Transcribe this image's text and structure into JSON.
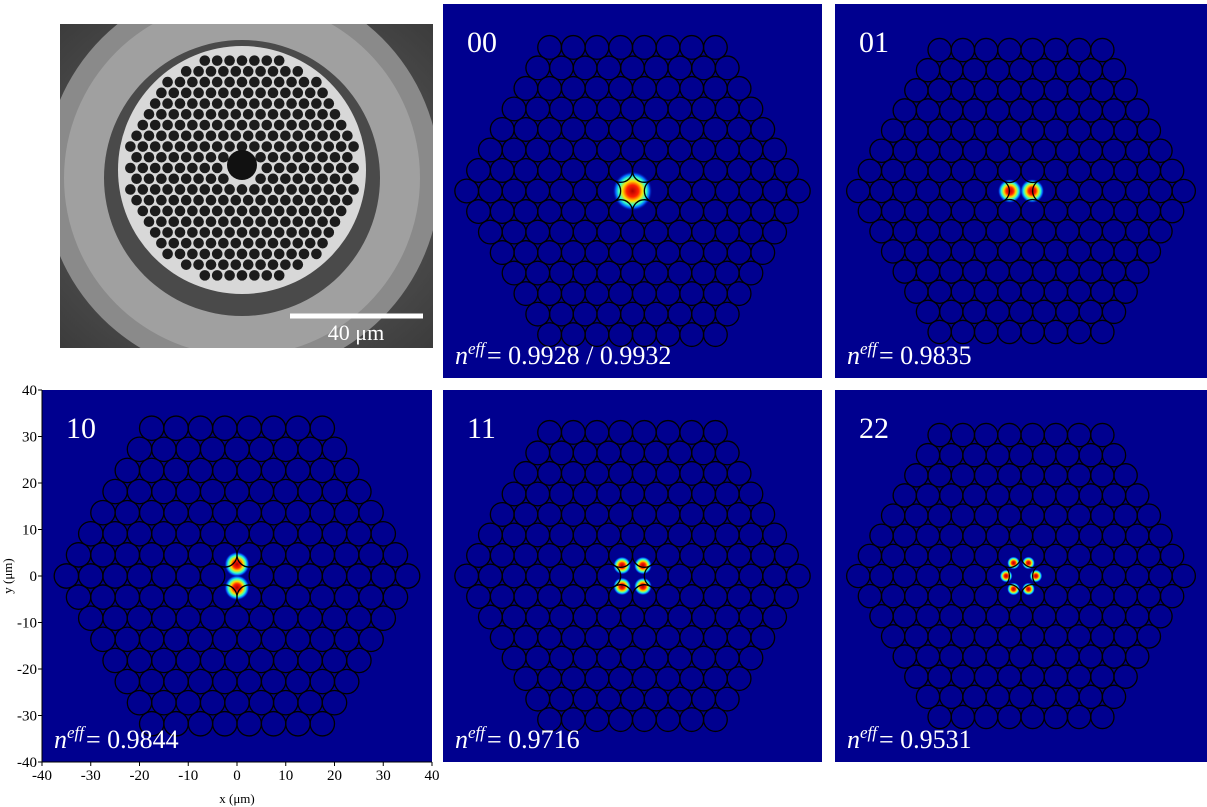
{
  "figure": {
    "sem": {
      "scale_bar": "40 μm"
    },
    "neff_symbol": "n",
    "neff_superscript": "eff",
    "panels": [
      {
        "label": "00",
        "neff": "= 0.9928 / 0.9932"
      },
      {
        "label": "01",
        "neff": "= 0.9835"
      },
      {
        "label": "10",
        "neff": "= 0.9844"
      },
      {
        "label": "11",
        "neff": "= 0.9716"
      },
      {
        "label": "22",
        "neff": "= 0.9531"
      }
    ],
    "axes": {
      "x_label": "x (μm)",
      "y_label": "y (μm)",
      "xlim": [
        -40,
        40
      ],
      "ylim": [
        -40,
        40
      ],
      "xticks": [
        -40,
        -30,
        -20,
        -10,
        0,
        10,
        20,
        30,
        40
      ],
      "yticks": [
        -40,
        -30,
        -20,
        -10,
        0,
        10,
        20,
        30,
        40
      ]
    }
  }
}
